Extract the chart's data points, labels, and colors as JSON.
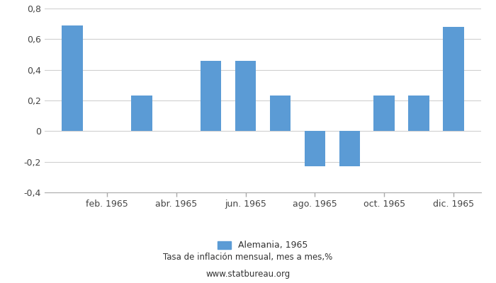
{
  "x_positions": [
    1,
    2,
    3,
    4,
    5,
    6,
    7,
    8,
    9,
    10,
    11,
    12
  ],
  "values": [
    0.69,
    0.0,
    0.23,
    0.0,
    0.46,
    0.46,
    0.23,
    -0.23,
    -0.23,
    0.23,
    0.23,
    0.68
  ],
  "bar_color": "#5B9BD5",
  "ylim": [
    -0.4,
    0.8
  ],
  "yticks": [
    -0.4,
    -0.2,
    0.0,
    0.2,
    0.4,
    0.6,
    0.8
  ],
  "ytick_labels": [
    "-0,4",
    "-0,2",
    "0",
    "0,2",
    "0,4",
    "0,6",
    "0,8"
  ],
  "xtick_labels": [
    "feb. 1965",
    "abr. 1965",
    "jun. 1965",
    "ago. 1965",
    "oct. 1965",
    "dic. 1965"
  ],
  "xtick_positions": [
    2,
    4,
    6,
    8,
    10,
    12
  ],
  "legend_label": "Alemania, 1965",
  "subtitle": "Tasa de inflación mensual, mes a mes,%",
  "website": "www.statbureau.org",
  "background_color": "#ffffff",
  "grid_color": "#d0d0d0",
  "bar_width": 0.6
}
